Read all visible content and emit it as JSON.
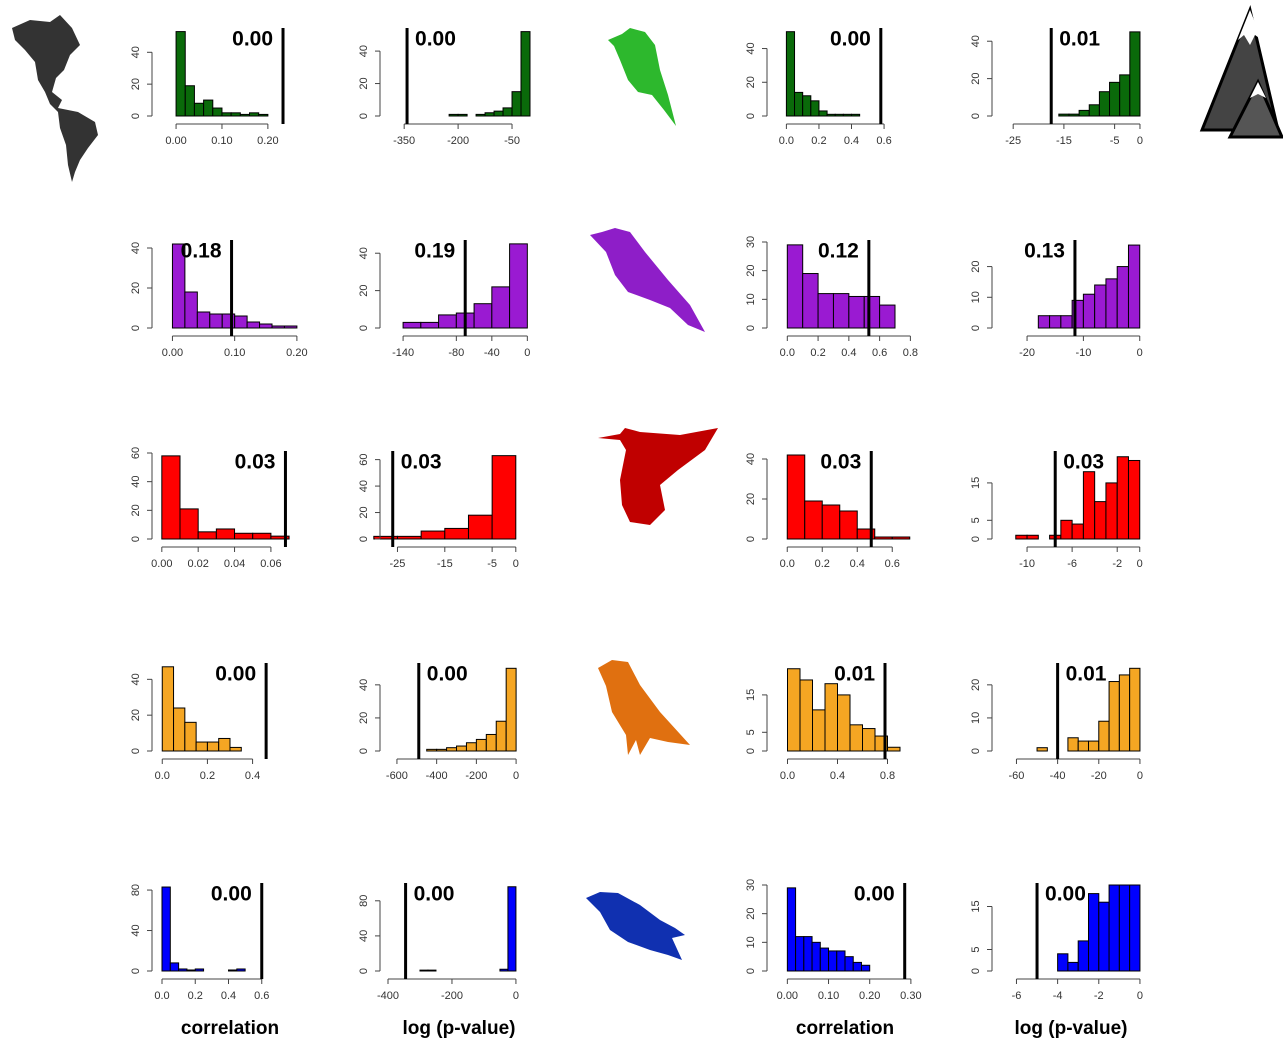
{
  "chart_data": [
    {
      "type": "histogram",
      "color": "#0a6a0a",
      "bins": [
        0,
        0.02,
        0.04,
        0.06,
        0.08,
        0.1,
        0.12,
        0.14,
        0.16,
        0.18,
        0.2
      ],
      "values": [
        53,
        19,
        8,
        10,
        5,
        2,
        2,
        1,
        2,
        1
      ],
      "xlim": [
        -0.035,
        0.27
      ],
      "ylim": [
        0,
        54
      ],
      "xticks": [
        {
          "value": 0,
          "label": "0.00"
        },
        {
          "value": 0.1,
          "label": "0.10"
        },
        {
          "value": 0.2,
          "label": "0.20"
        }
      ],
      "yticks": [
        0,
        20,
        40
      ],
      "reference_line": 0.233,
      "annotation": "0.00"
    },
    {
      "type": "histogram",
      "color": "#0a6a0a",
      "bins": [
        -225,
        -200,
        -175,
        -150,
        -125,
        -100,
        -75,
        -50,
        -25,
        0
      ],
      "values": [
        1,
        1,
        0,
        1,
        2,
        3,
        5,
        15,
        52
      ],
      "xlim": [
        -395,
        0
      ],
      "ylim": [
        0,
        53
      ],
      "xticks": [
        -350,
        -200,
        -50
      ],
      "yticks": [
        0,
        20,
        40
      ],
      "reference_line": -342,
      "annotation": "0.00"
    },
    {
      "type": "histogram",
      "color": "#0a6a0a",
      "bins": [
        0,
        0.05,
        0.1,
        0.15,
        0.2,
        0.25,
        0.3,
        0.35,
        0.4,
        0.45
      ],
      "values": [
        50,
        14,
        12,
        9,
        3,
        1,
        1,
        1,
        1
      ],
      "xlim": [
        -0.07,
        0.79
      ],
      "ylim": [
        0,
        51
      ],
      "xticks": [
        {
          "value": 0,
          "label": "0.0"
        },
        0.2,
        0.4,
        0.6
      ],
      "yticks": [
        0,
        20,
        40
      ],
      "reference_line": 0.58,
      "annotation": "0.00"
    },
    {
      "type": "histogram",
      "color": "#0a6a0a",
      "bins": [
        -16,
        -14,
        -12,
        -10,
        -8,
        -6,
        -4,
        -2,
        0
      ],
      "values": [
        1,
        1,
        3,
        6,
        13,
        18,
        22,
        45
      ],
      "xlim": [
        -27.6,
        0.4
      ],
      "ylim": [
        0,
        46
      ],
      "xticks": [
        -25,
        -15,
        -5,
        0
      ],
      "yticks": [
        0,
        20,
        40
      ],
      "reference_line": -17.5,
      "annotation": "0.01"
    },
    {
      "type": "histogram",
      "color": "#9a1ad2",
      "bins": [
        0,
        0.02,
        0.04,
        0.06,
        0.08,
        0.1,
        0.12,
        0.14,
        0.16,
        0.18,
        0.2
      ],
      "values": [
        42,
        18,
        8,
        7,
        7,
        6,
        3,
        2,
        1,
        1
      ],
      "xlim": [
        -0.02,
        0.205
      ],
      "ylim": [
        0,
        43
      ],
      "xticks": [
        {
          "value": 0,
          "label": "0.00"
        },
        {
          "value": 0.1,
          "label": "0.10"
        },
        {
          "value": 0.2,
          "label": "0.20"
        }
      ],
      "yticks": [
        0,
        20,
        40
      ],
      "reference_line": 0.095,
      "annotation": "0.18"
    },
    {
      "type": "histogram",
      "color": "#9a1ad2",
      "bins": [
        -140,
        -120,
        -100,
        -80,
        -60,
        -40,
        -20,
        0
      ],
      "values": [
        3,
        3,
        7,
        8,
        13,
        22,
        45
      ],
      "xlim": [
        -157,
        3
      ],
      "ylim": [
        0,
        46
      ],
      "xticks": [
        -140,
        -80,
        -40,
        0
      ],
      "yticks": [
        0,
        20,
        40
      ],
      "reference_line": -70,
      "annotation": "0.19"
    },
    {
      "type": "histogram",
      "color": "#9a1ad2",
      "bins": [
        0,
        0.1,
        0.2,
        0.3,
        0.4,
        0.5,
        0.6,
        0.7
      ],
      "values": [
        29,
        19,
        12,
        12,
        11,
        11,
        8
      ],
      "xlim": [
        -0.08,
        0.83
      ],
      "ylim": [
        0,
        30
      ],
      "xticks": [
        {
          "value": 0,
          "label": "0.0"
        },
        0.2,
        0.4,
        0.6,
        0.8
      ],
      "yticks": [
        0,
        10,
        20,
        30
      ],
      "reference_line": 0.53,
      "annotation": "0.12"
    },
    {
      "type": "histogram",
      "color": "#9a1ad2",
      "bins": [
        -18,
        -16,
        -14,
        -12,
        -10,
        -8,
        -6,
        -4,
        -2,
        0
      ],
      "values": [
        4,
        4,
        4,
        9,
        11,
        14,
        16,
        20,
        27
      ],
      "xlim": [
        -24.8,
        0.4
      ],
      "ylim": [
        0,
        28
      ],
      "xticks": [
        -20,
        -10,
        0
      ],
      "yticks": [
        0,
        10,
        20
      ],
      "reference_line": -11.5,
      "annotation": "0.13"
    },
    {
      "type": "histogram",
      "color": "#ff0000",
      "bins": [
        0,
        0.01,
        0.02,
        0.03,
        0.04,
        0.05,
        0.06,
        0.07
      ],
      "values": [
        58,
        21,
        5,
        7,
        4,
        4,
        2
      ],
      "xlim": [
        -0.001,
        0.076
      ],
      "ylim": [
        0,
        60
      ],
      "xticks": [
        {
          "value": 0,
          "label": "0.00"
        },
        {
          "value": 0.02,
          "label": "0.02"
        },
        {
          "value": 0.04,
          "label": "0.04"
        },
        {
          "value": 0.06,
          "label": "0.06"
        }
      ],
      "yticks": [
        0,
        20,
        40,
        60
      ],
      "reference_line": 0.068,
      "annotation": "0.03"
    },
    {
      "type": "histogram",
      "color": "#ff0000",
      "bins": [
        -30,
        -25,
        -20,
        -15,
        -10,
        -5,
        0
      ],
      "values": [
        2,
        2,
        6,
        8,
        18,
        63
      ],
      "xlim": [
        -27,
        3
      ],
      "ylim": [
        0,
        65
      ],
      "xticks": [
        -25,
        -15,
        -5,
        0
      ],
      "yticks": [
        0,
        20,
        40,
        60
      ],
      "reference_line": -26,
      "annotation": "0.03"
    },
    {
      "type": "histogram",
      "color": "#ff0000",
      "bins": [
        0,
        0.1,
        0.2,
        0.3,
        0.4,
        0.5,
        0.6,
        0.7
      ],
      "values": [
        42,
        19,
        17,
        14,
        5,
        1,
        1
      ],
      "xlim": [
        -0.07,
        0.73
      ],
      "ylim": [
        0,
        43
      ],
      "xticks": [
        {
          "value": 0,
          "label": "0.0"
        },
        0.2,
        0.4,
        0.6
      ],
      "yticks": [
        0,
        20,
        40
      ],
      "reference_line": 0.48,
      "annotation": "0.03"
    },
    {
      "type": "histogram",
      "color": "#ff0000",
      "bins": [
        -11,
        -10,
        -9,
        -8,
        -7,
        -6,
        -5,
        -4,
        -3,
        -2,
        -1,
        0
      ],
      "values": [
        1,
        1,
        0,
        1,
        5,
        4,
        18,
        10,
        15,
        22,
        21
      ],
      "xlim": [
        -12.4,
        0.2
      ],
      "ylim": [
        0,
        23
      ],
      "xticks": [
        -10,
        -6,
        -2,
        0
      ],
      "yticks": [
        0,
        5,
        15
      ],
      "reference_line": -7.5,
      "annotation": "0.03"
    },
    {
      "type": "histogram",
      "color": "#f5a623",
      "bins": [
        0,
        0.05,
        0.1,
        0.15,
        0.2,
        0.25,
        0.3,
        0.35
      ],
      "values": [
        47,
        24,
        16,
        5,
        5,
        7,
        2
      ],
      "xlim": [
        -0.01,
        0.61
      ],
      "ylim": [
        0,
        48
      ],
      "xticks": [
        {
          "value": 0,
          "label": "0.0"
        },
        0.2,
        0.4
      ],
      "yticks": [
        0,
        20,
        40
      ],
      "reference_line": 0.46,
      "annotation": "0.00"
    },
    {
      "type": "histogram",
      "color": "#f5a623",
      "bins": [
        -450,
        -400,
        -350,
        -300,
        -250,
        -200,
        -150,
        -100,
        -50,
        0
      ],
      "values": [
        1,
        1,
        2,
        3,
        5,
        7,
        10,
        18,
        50
      ],
      "xlim": [
        -645,
        70
      ],
      "ylim": [
        0,
        52
      ],
      "xticks": [
        -600,
        -400,
        -200,
        0
      ],
      "yticks": [
        0,
        20,
        40
      ],
      "reference_line": -490,
      "annotation": "0.00"
    },
    {
      "type": "histogram",
      "color": "#f5a623",
      "bins": [
        0,
        0.1,
        0.2,
        0.3,
        0.4,
        0.5,
        0.6,
        0.7,
        0.8,
        0.9
      ],
      "values": [
        22,
        19,
        11,
        18,
        15,
        7,
        6,
        4,
        1
      ],
      "xlim": [
        -0.1,
        1.02
      ],
      "ylim": [
        0,
        23
      ],
      "xticks": [
        {
          "value": 0,
          "label": "0.0"
        },
        0.4,
        0.8
      ],
      "yticks": [
        0,
        5,
        15
      ],
      "reference_line": 0.78,
      "annotation": "0.01"
    },
    {
      "type": "histogram",
      "color": "#f5a623",
      "bins": [
        -55,
        -50,
        -45,
        -40,
        -35,
        -30,
        -25,
        -20,
        -15,
        -10,
        -5,
        0
      ],
      "values": [
        0,
        1,
        0,
        0,
        4,
        3,
        3,
        9,
        21,
        23,
        25
      ],
      "xlim": [
        -68,
        1
      ],
      "ylim": [
        0,
        26
      ],
      "xticks": [
        -60,
        -40,
        -20,
        0
      ],
      "yticks": [
        0,
        10,
        20
      ],
      "reference_line": -40,
      "annotation": "0.01"
    },
    {
      "type": "histogram",
      "color": "#0000ff",
      "bins": [
        0,
        0.05,
        0.1,
        0.15,
        0.2,
        0.25,
        0.3,
        0.35,
        0.4,
        0.45,
        0.5
      ],
      "values": [
        83,
        8,
        2,
        1,
        2,
        0,
        0,
        0,
        1,
        2
      ],
      "xlim": [
        -0.012,
        0.83
      ],
      "ylim": [
        0,
        85
      ],
      "xticks": [
        {
          "value": 0,
          "label": "0.0"
        },
        0.2,
        0.4,
        0.6
      ],
      "yticks": [
        0,
        40,
        80
      ],
      "reference_line": 0.6,
      "annotation": "0.00",
      "xlabel": "correlation"
    },
    {
      "type": "histogram",
      "color": "#0000ff",
      "bins": [
        -300,
        -275,
        -250,
        -225,
        -200,
        -175,
        -150,
        -125,
        -100,
        -75,
        -50,
        -25,
        0
      ],
      "values": [
        1,
        1,
        0,
        0,
        0,
        0,
        0,
        0,
        0,
        0,
        2,
        96
      ],
      "xlim": [
        -400,
        44
      ],
      "ylim": [
        0,
        98
      ],
      "xticks": [
        -400,
        -200,
        0
      ],
      "yticks": [
        0,
        40,
        80
      ],
      "reference_line": -345,
      "annotation": "0.00",
      "xlabel": "log (p-value)"
    },
    {
      "type": "histogram",
      "color": "#0000ff",
      "bins": [
        0,
        0.02,
        0.04,
        0.06,
        0.08,
        0.1,
        0.12,
        0.14,
        0.16,
        0.18,
        0.2,
        0.22
      ],
      "values": [
        29,
        12,
        12,
        10,
        8,
        7,
        7,
        5,
        3,
        2,
        0
      ],
      "xlim": [
        -0.03,
        0.31
      ],
      "ylim": [
        0,
        30
      ],
      "xticks": [
        {
          "value": 0,
          "label": "0.00"
        },
        {
          "value": 0.1,
          "label": "0.10"
        },
        {
          "value": 0.2,
          "label": "0.20"
        },
        {
          "value": 0.3,
          "label": "0.30"
        }
      ],
      "yticks": [
        0,
        10,
        20,
        30
      ],
      "reference_line": 0.285,
      "annotation": "0.00",
      "xlabel": "correlation"
    },
    {
      "type": "histogram",
      "color": "#0000ff",
      "bins": [
        -4,
        -3.5,
        -3,
        -2.5,
        -2,
        -1.5,
        -1,
        -0.5,
        0
      ],
      "values": [
        4,
        2,
        7,
        18,
        16,
        20,
        20,
        20
      ],
      "xlim": [
        -6.8,
        0.1
      ],
      "ylim": [
        0,
        20
      ],
      "xticks": [
        -6,
        -4,
        -2,
        0
      ],
      "yticks": [
        0,
        5,
        15
      ],
      "reference_line": -5,
      "annotation": "0.00",
      "xlabel": "log (p-value)"
    }
  ]
}
